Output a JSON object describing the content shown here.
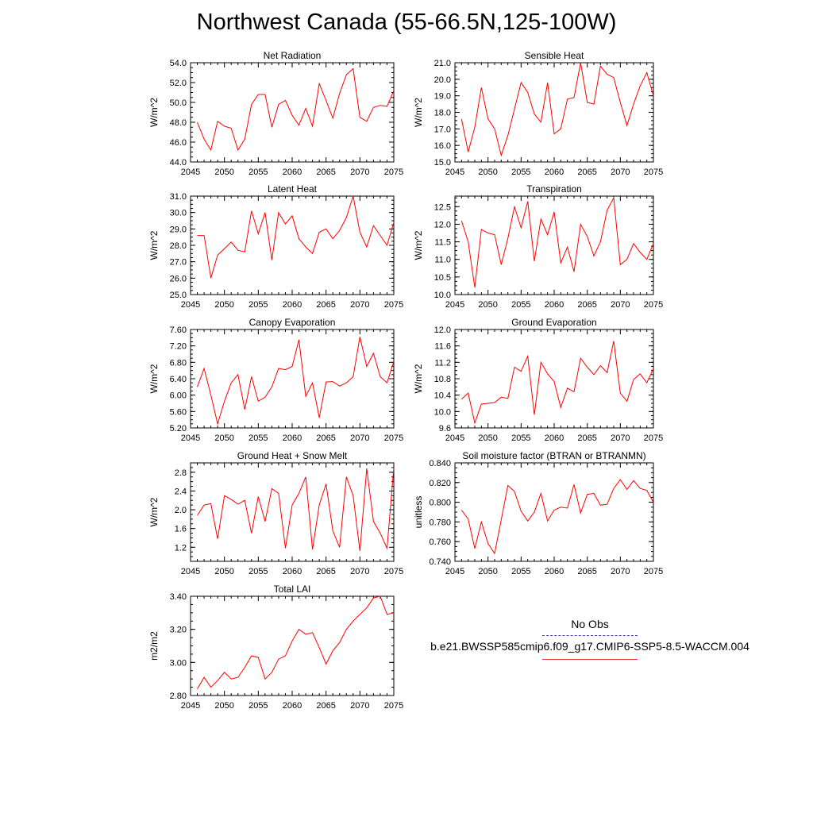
{
  "page": {
    "title": "Northwest Canada (55-66.5N,125-100W)"
  },
  "legend": {
    "obs_label": "No Obs",
    "model_label": "b.e21.BWSSP585cmip6.f09_g17.CMIP6-SSP5-8.5-WACCM.004",
    "obs_color": "#3f3fb0",
    "model_color": "#ff0000"
  },
  "chart_data": [
    {
      "type": "line",
      "title": "Net Radiation",
      "xlabel": "",
      "ylabel": "W/m^2",
      "xlim": [
        2045,
        2075
      ],
      "ylim": [
        44.0,
        54.0
      ],
      "xticks": [
        "2045",
        "2050",
        "2055",
        "2060",
        "2065",
        "2070",
        "2075"
      ],
      "yticks": [
        "44.0",
        "46.0",
        "48.0",
        "50.0",
        "52.0",
        "54.0"
      ],
      "x": [
        2046,
        2047,
        2048,
        2049,
        2050,
        2051,
        2052,
        2053,
        2054,
        2055,
        2056,
        2057,
        2058,
        2059,
        2060,
        2061,
        2062,
        2063,
        2064,
        2065,
        2066,
        2067,
        2068,
        2069,
        2070,
        2071,
        2072,
        2073,
        2074,
        2075
      ],
      "series": [
        {
          "color": "#ff0000",
          "values": [
            48.0,
            46.3,
            45.2,
            48.1,
            47.6,
            47.4,
            45.2,
            46.3,
            49.8,
            50.8,
            50.8,
            47.5,
            49.8,
            50.2,
            48.7,
            47.7,
            49.4,
            47.6,
            51.9,
            50.2,
            48.4,
            50.9,
            52.8,
            53.4,
            48.5,
            48.1,
            49.5,
            49.7,
            49.6,
            51.2
          ]
        }
      ]
    },
    {
      "type": "line",
      "title": "Sensible Heat",
      "xlabel": "",
      "ylabel": "W/m^2",
      "xlim": [
        2045,
        2075
      ],
      "ylim": [
        15.0,
        21.0
      ],
      "xticks": [
        "2045",
        "2050",
        "2055",
        "2060",
        "2065",
        "2070",
        "2075"
      ],
      "yticks": [
        "15.0",
        "16.0",
        "17.0",
        "18.0",
        "19.0",
        "20.0",
        "21.0"
      ],
      "x": [
        2046,
        2047,
        2048,
        2049,
        2050,
        2051,
        2052,
        2053,
        2054,
        2055,
        2056,
        2057,
        2058,
        2059,
        2060,
        2061,
        2062,
        2063,
        2064,
        2065,
        2066,
        2067,
        2068,
        2069,
        2070,
        2071,
        2072,
        2073,
        2074,
        2075
      ],
      "series": [
        {
          "color": "#ff0000",
          "values": [
            17.6,
            15.6,
            17.1,
            19.5,
            17.6,
            17.0,
            15.4,
            16.6,
            18.2,
            19.8,
            19.2,
            17.9,
            17.4,
            19.8,
            16.7,
            17.0,
            18.8,
            18.9,
            21.0,
            18.6,
            18.5,
            20.8,
            20.3,
            20.1,
            18.6,
            17.2,
            18.5,
            19.6,
            20.4,
            19.0
          ]
        }
      ]
    },
    {
      "type": "line",
      "title": "Latent Heat",
      "xlabel": "",
      "ylabel": "W/m^2",
      "xlim": [
        2045,
        2075
      ],
      "ylim": [
        25.0,
        31.0
      ],
      "xticks": [
        "2045",
        "2050",
        "2055",
        "2060",
        "2065",
        "2070",
        "2075"
      ],
      "yticks": [
        "25.0",
        "26.0",
        "27.0",
        "28.0",
        "29.0",
        "30.0",
        "31.0"
      ],
      "x": [
        2046,
        2047,
        2048,
        2049,
        2050,
        2051,
        2052,
        2053,
        2054,
        2055,
        2056,
        2057,
        2058,
        2059,
        2060,
        2061,
        2062,
        2063,
        2064,
        2065,
        2066,
        2067,
        2068,
        2069,
        2070,
        2071,
        2072,
        2073,
        2074,
        2075
      ],
      "series": [
        {
          "color": "#ff0000",
          "values": [
            28.6,
            28.6,
            26.0,
            27.4,
            27.8,
            28.2,
            27.7,
            27.6,
            30.1,
            28.7,
            30.0,
            27.1,
            30.0,
            29.3,
            29.8,
            28.4,
            27.9,
            27.5,
            28.8,
            29.0,
            28.4,
            28.9,
            29.7,
            31.0,
            28.8,
            27.9,
            29.2,
            28.6,
            28.0,
            29.4
          ]
        }
      ]
    },
    {
      "type": "line",
      "title": "Transpiration",
      "xlabel": "",
      "ylabel": "W/m^2",
      "xlim": [
        2045,
        2075
      ],
      "ylim": [
        10.0,
        12.8
      ],
      "xticks": [
        "2045",
        "2050",
        "2055",
        "2060",
        "2065",
        "2070",
        "2075"
      ],
      "yticks": [
        "10.0",
        "10.5",
        "11.0",
        "11.5",
        "12.0",
        "12.5"
      ],
      "x": [
        2046,
        2047,
        2048,
        2049,
        2050,
        2051,
        2052,
        2053,
        2054,
        2055,
        2056,
        2057,
        2058,
        2059,
        2060,
        2061,
        2062,
        2063,
        2064,
        2065,
        2066,
        2067,
        2068,
        2069,
        2070,
        2071,
        2072,
        2073,
        2074,
        2075
      ],
      "series": [
        {
          "color": "#ff0000",
          "values": [
            12.1,
            11.5,
            10.2,
            11.85,
            11.75,
            11.7,
            10.85,
            11.6,
            12.5,
            11.9,
            12.65,
            10.95,
            12.15,
            11.7,
            12.35,
            10.9,
            11.35,
            10.65,
            12.0,
            11.65,
            11.1,
            11.5,
            12.4,
            12.75,
            10.85,
            11.0,
            11.45,
            11.2,
            11.0,
            11.45
          ]
        }
      ]
    },
    {
      "type": "line",
      "title": "Canopy Evaporation",
      "xlabel": "",
      "ylabel": "W/m^2",
      "xlim": [
        2045,
        2075
      ],
      "ylim": [
        5.2,
        7.6
      ],
      "xticks": [
        "2045",
        "2050",
        "2055",
        "2060",
        "2065",
        "2070",
        "2075"
      ],
      "yticks": [
        "5.20",
        "5.60",
        "6.00",
        "6.40",
        "6.80",
        "7.20",
        "7.60"
      ],
      "x": [
        2046,
        2047,
        2048,
        2049,
        2050,
        2051,
        2052,
        2053,
        2054,
        2055,
        2056,
        2057,
        2058,
        2059,
        2060,
        2061,
        2062,
        2063,
        2064,
        2065,
        2066,
        2067,
        2068,
        2069,
        2070,
        2071,
        2072,
        2073,
        2074,
        2075
      ],
      "series": [
        {
          "color": "#ff0000",
          "values": [
            6.2,
            6.65,
            6.0,
            5.3,
            5.85,
            6.3,
            6.5,
            5.65,
            6.45,
            5.85,
            5.95,
            6.2,
            6.65,
            6.62,
            6.7,
            7.35,
            5.97,
            6.3,
            5.45,
            6.32,
            6.33,
            6.22,
            6.3,
            6.45,
            7.42,
            6.7,
            7.02,
            6.45,
            6.3,
            6.82
          ]
        }
      ]
    },
    {
      "type": "line",
      "title": "Ground Evaporation",
      "xlabel": "",
      "ylabel": "W/m^2",
      "xlim": [
        2045,
        2075
      ],
      "ylim": [
        9.6,
        12.0
      ],
      "xticks": [
        "2045",
        "2050",
        "2055",
        "2060",
        "2065",
        "2070",
        "2075"
      ],
      "yticks": [
        "9.6",
        "10.0",
        "10.4",
        "10.8",
        "11.2",
        "11.6",
        "12.0"
      ],
      "x": [
        2046,
        2047,
        2048,
        2049,
        2050,
        2051,
        2052,
        2053,
        2054,
        2055,
        2056,
        2057,
        2058,
        2059,
        2060,
        2061,
        2062,
        2063,
        2064,
        2065,
        2066,
        2067,
        2068,
        2069,
        2070,
        2071,
        2072,
        2073,
        2074,
        2075
      ],
      "series": [
        {
          "color": "#ff0000",
          "values": [
            10.3,
            10.45,
            9.72,
            10.18,
            10.2,
            10.22,
            10.35,
            10.32,
            11.08,
            10.98,
            11.35,
            9.92,
            11.2,
            10.92,
            10.73,
            10.1,
            10.57,
            10.48,
            11.3,
            11.08,
            10.9,
            11.12,
            10.95,
            11.72,
            10.45,
            10.25,
            10.78,
            10.92,
            10.7,
            11.05
          ]
        }
      ]
    },
    {
      "type": "line",
      "title": "Ground Heat + Snow Melt",
      "xlabel": "",
      "ylabel": "W/m^2",
      "xlim": [
        2045,
        2075
      ],
      "ylim": [
        0.9,
        3.0
      ],
      "xticks": [
        "2045",
        "2050",
        "2055",
        "2060",
        "2065",
        "2070",
        "2075"
      ],
      "yticks": [
        "1.2",
        "1.6",
        "2.0",
        "2.4",
        "2.8"
      ],
      "x": [
        2046,
        2047,
        2048,
        2049,
        2050,
        2051,
        2052,
        2053,
        2054,
        2055,
        2056,
        2057,
        2058,
        2059,
        2060,
        2061,
        2062,
        2063,
        2064,
        2065,
        2066,
        2067,
        2068,
        2069,
        2070,
        2071,
        2072,
        2073,
        2074,
        2075
      ],
      "series": [
        {
          "color": "#ff0000",
          "values": [
            1.88,
            2.1,
            2.13,
            1.38,
            2.3,
            2.22,
            2.12,
            2.2,
            1.5,
            2.28,
            1.75,
            2.45,
            2.35,
            1.18,
            2.1,
            2.35,
            2.7,
            1.15,
            2.1,
            2.55,
            1.55,
            1.2,
            2.7,
            2.3,
            1.12,
            2.88,
            1.75,
            1.5,
            1.18,
            2.9
          ]
        }
      ]
    },
    {
      "type": "line",
      "title": "Soil moisture factor (BTRAN or BTRANMN)",
      "xlabel": "",
      "ylabel": "unitless",
      "xlim": [
        2045,
        2075
      ],
      "ylim": [
        0.74,
        0.84
      ],
      "xticks": [
        "2045",
        "2050",
        "2055",
        "2060",
        "2065",
        "2070",
        "2075"
      ],
      "yticks": [
        "0.740",
        "0.760",
        "0.780",
        "0.800",
        "0.820",
        "0.840"
      ],
      "x": [
        2046,
        2047,
        2048,
        2049,
        2050,
        2051,
        2052,
        2053,
        2054,
        2055,
        2056,
        2057,
        2058,
        2059,
        2060,
        2061,
        2062,
        2063,
        2064,
        2065,
        2066,
        2067,
        2068,
        2069,
        2070,
        2071,
        2072,
        2073,
        2074,
        2075
      ],
      "series": [
        {
          "color": "#ff0000",
          "values": [
            0.792,
            0.783,
            0.753,
            0.78,
            0.758,
            0.748,
            0.782,
            0.817,
            0.811,
            0.791,
            0.781,
            0.79,
            0.809,
            0.781,
            0.792,
            0.795,
            0.794,
            0.818,
            0.789,
            0.808,
            0.809,
            0.797,
            0.798,
            0.814,
            0.823,
            0.813,
            0.822,
            0.814,
            0.812,
            0.8
          ]
        }
      ]
    },
    {
      "type": "line",
      "title": "Total LAI",
      "xlabel": "",
      "ylabel": "m2/m2",
      "xlim": [
        2045,
        2075
      ],
      "ylim": [
        2.8,
        3.4
      ],
      "xticks": [
        "2045",
        "2050",
        "2055",
        "2060",
        "2065",
        "2070",
        "2075"
      ],
      "yticks": [
        "2.80",
        "3.00",
        "3.20",
        "3.40"
      ],
      "x": [
        2046,
        2047,
        2048,
        2049,
        2050,
        2051,
        2052,
        2053,
        2054,
        2055,
        2056,
        2057,
        2058,
        2059,
        2060,
        2061,
        2062,
        2063,
        2064,
        2065,
        2066,
        2067,
        2068,
        2069,
        2070,
        2071,
        2072,
        2073,
        2074,
        2075
      ],
      "series": [
        {
          "color": "#ff0000",
          "values": [
            2.84,
            2.91,
            2.85,
            2.89,
            2.94,
            2.9,
            2.91,
            2.97,
            3.04,
            3.03,
            2.9,
            2.94,
            3.02,
            3.04,
            3.13,
            3.2,
            3.17,
            3.18,
            3.09,
            2.99,
            3.07,
            3.12,
            3.2,
            3.25,
            3.29,
            3.33,
            3.39,
            3.4,
            3.29,
            3.3
          ]
        }
      ]
    }
  ]
}
